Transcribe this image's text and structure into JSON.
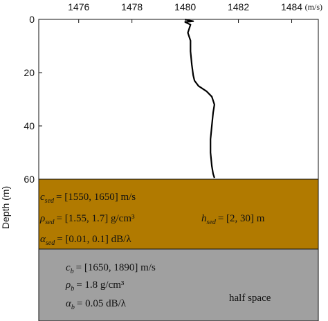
{
  "chart_data": {
    "type": "line",
    "title": "",
    "xlabel": "",
    "x_unit": "(m/s)",
    "ylabel": "Depth (m)",
    "xlim": [
      1474.5,
      1485.0
    ],
    "ylim": [
      0,
      60
    ],
    "x_ticks": [
      "1476",
      "1478",
      "1480",
      "1482",
      "1484"
    ],
    "x_tick_values": [
      1476,
      1478,
      1480,
      1482,
      1484
    ],
    "y_ticks": [
      "0",
      "20",
      "40",
      "60"
    ],
    "y_tick_values": [
      0,
      20,
      40,
      60
    ],
    "x_axis_position": "top",
    "grid": false,
    "series": [
      {
        "x": [
          1480.0,
          1480.1,
          1480.3,
          1480.0,
          1480.2,
          1480.1,
          1480.2,
          1480.2,
          1480.25,
          1480.3,
          1480.35,
          1480.5,
          1480.8,
          1481.0,
          1481.1,
          1481.05,
          1481.0,
          1480.95,
          1480.95,
          1481.0,
          1481.05,
          1481.1
        ],
        "y": [
          0,
          0.3,
          0.7,
          1.0,
          2,
          5,
          8,
          12,
          17,
          21,
          23,
          25,
          27,
          29,
          32,
          35,
          40,
          45,
          50,
          55,
          58,
          59.5
        ]
      }
    ],
    "regions": [
      {
        "name": "sediment",
        "color": "#b17a00",
        "labels": [
          {
            "var": "c",
            "sub": "sed",
            "rhs": "= [1550, 1650] m/s"
          },
          {
            "var": "ρ",
            "sub": "sed",
            "rhs": "= [1.55, 1.7] g/cm³"
          },
          {
            "var": "α",
            "sub": "sed",
            "rhs": "= [0.01, 0.1] dB/λ"
          },
          {
            "var": "h",
            "sub": "sed",
            "rhs": "= [2, 30] m"
          }
        ]
      },
      {
        "name": "basement",
        "color": "#a0a0a0",
        "labels": [
          {
            "var": "c",
            "sub": "b",
            "rhs": "= [1650, 1890] m/s"
          },
          {
            "var": "ρ",
            "sub": "b",
            "rhs": "= 1.8 g/cm³"
          },
          {
            "var": "α",
            "sub": "b",
            "rhs": "= 0.05 dB/λ"
          }
        ],
        "note": "half space"
      }
    ]
  }
}
